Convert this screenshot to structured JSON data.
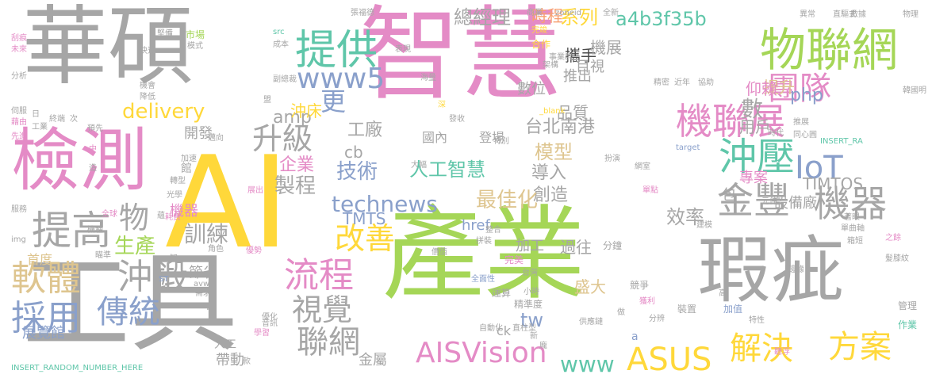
{
  "colors": {
    "pink": "#e48bc6",
    "green": "#a5d657",
    "gray": "#a6a6a6",
    "yellow": "#ffd83a",
    "tan": "#dec58f",
    "orange": "#f7a072",
    "teal": "#5fc6a9",
    "blue": "#8aa0cb",
    "dark": "#4b4b4b"
  },
  "words": [
    {
      "text": "智慧",
      "color": "pink"
    },
    {
      "text": "AI",
      "color": "yellow"
    },
    {
      "text": "產業",
      "color": "green"
    },
    {
      "text": "華碩",
      "color": "gray"
    },
    {
      "text": "工具",
      "color": "gray"
    },
    {
      "text": "瑕疵",
      "color": "gray"
    },
    {
      "text": "檢測",
      "color": "pink"
    },
    {
      "text": "物聯網",
      "color": "green"
    },
    {
      "text": "提供",
      "color": "teal"
    },
    {
      "text": "團隊",
      "color": "pink"
    },
    {
      "text": "機聯展",
      "color": "pink"
    },
    {
      "text": "金豐",
      "color": "gray"
    },
    {
      "text": "機器",
      "color": "gray"
    },
    {
      "text": "沖壓",
      "color": "teal"
    },
    {
      "text": "IoT",
      "color": "blue"
    },
    {
      "text": "提高",
      "color": "gray"
    },
    {
      "text": "軟體",
      "color": "tan"
    },
    {
      "text": "沖鍛",
      "color": "gray"
    },
    {
      "text": "採用",
      "color": "blue"
    },
    {
      "text": "傳統",
      "color": "blue"
    },
    {
      "text": "流程",
      "color": "pink"
    },
    {
      "text": "視覺",
      "color": "gray"
    },
    {
      "text": "聯網",
      "color": "gray"
    },
    {
      "text": "AISVision",
      "color": "pink"
    },
    {
      "text": "ASUS",
      "color": "yellow"
    },
    {
      "text": "解決",
      "color": "yellow"
    },
    {
      "text": "方案",
      "color": "yellow"
    },
    {
      "text": "www5",
      "color": "blue"
    },
    {
      "text": "更",
      "color": "blue"
    },
    {
      "text": "升級",
      "color": "gray"
    },
    {
      "text": "改善",
      "color": "yellow"
    },
    {
      "text": "technews",
      "color": "blue"
    },
    {
      "text": "www",
      "color": "teal"
    },
    {
      "text": "tw",
      "color": "blue"
    },
    {
      "text": "物",
      "color": "gray"
    },
    {
      "text": "生產",
      "color": "green"
    },
    {
      "text": "訓練",
      "color": "gray"
    },
    {
      "text": "製程",
      "color": "gray"
    },
    {
      "text": "企業",
      "color": "pink"
    },
    {
      "text": "技術",
      "color": "blue"
    },
    {
      "text": "人工智慧",
      "color": "teal"
    },
    {
      "text": "導入",
      "color": "gray"
    },
    {
      "text": "創造",
      "color": "gray"
    },
    {
      "text": "最佳化",
      "color": "tan"
    },
    {
      "text": "模型",
      "color": "tan"
    },
    {
      "text": "效率",
      "color": "gray"
    },
    {
      "text": "工廠",
      "color": "gray"
    },
    {
      "text": "總經理",
      "color": "gray"
    },
    {
      "text": "delivery",
      "color": "yellow"
    },
    {
      "text": "amp",
      "color": "gray"
    },
    {
      "text": "沖床",
      "color": "yellow"
    },
    {
      "text": "品質",
      "color": "gray"
    },
    {
      "text": "數位",
      "color": "gray"
    },
    {
      "text": "系列",
      "color": "yellow"
    },
    {
      "text": "時程",
      "color": "orange"
    },
    {
      "text": "a4b3f35b",
      "color": "teal"
    },
    {
      "text": "php",
      "color": "blue"
    },
    {
      "text": "提升",
      "color": "tan"
    },
    {
      "text": "數",
      "color": "gray"
    },
    {
      "text": "用戶",
      "color": "gray"
    },
    {
      "text": "仰賴",
      "color": "pink"
    },
    {
      "text": "cb",
      "color": "gray"
    },
    {
      "text": "台北南港",
      "color": "gray"
    },
    {
      "text": "攜手",
      "color": "dark"
    },
    {
      "text": "推出",
      "color": "gray"
    },
    {
      "text": "目視",
      "color": "gray"
    },
    {
      "text": "機展",
      "color": "gray"
    },
    {
      "text": "TIMTOS",
      "color": "gray"
    },
    {
      "text": "TMTS",
      "color": "blue"
    },
    {
      "text": "href",
      "color": "blue"
    },
    {
      "text": "加工",
      "color": "gray"
    },
    {
      "text": "過往",
      "color": "gray"
    },
    {
      "text": "盛大",
      "color": "tan"
    },
    {
      "text": "機器",
      "color": "pink"
    },
    {
      "text": "開發",
      "color": "gray"
    },
    {
      "text": "專案",
      "color": "pink"
    },
    {
      "text": "設備廠",
      "color": "gray"
    },
    {
      "text": "節省",
      "color": "gray"
    },
    {
      "text": "展覽館",
      "color": "blue"
    },
    {
      "text": "帶動",
      "color": "gray"
    },
    {
      "text": "人工",
      "color": "gray"
    },
    {
      "text": "金屬",
      "color": "gray"
    },
    {
      "text": "ck",
      "color": "gray"
    },
    {
      "text": "首度",
      "color": "tan"
    },
    {
      "text": "INSERT_RANDOM_NUMBER_HERE",
      "color": "teal"
    },
    {
      "text": "國內",
      "color": "gray"
    },
    {
      "text": "登場",
      "color": "gray"
    },
    {
      "text": "包",
      "color": "gray"
    },
    {
      "text": "n",
      "color": "gray"
    },
    {
      "text": "avw",
      "color": "gray"
    },
    {
      "text": "ST",
      "color": "blue"
    },
    {
      "text": "a",
      "color": "blue"
    },
    {
      "text": "自動化",
      "color": "gray"
    },
    {
      "text": "直柱型",
      "color": "gray"
    },
    {
      "text": "精準度",
      "color": "gray"
    },
    {
      "text": "台灣",
      "color": "gray"
    },
    {
      "text": "全面性",
      "color": "blue"
    },
    {
      "text": "運算",
      "color": "gray"
    },
    {
      "text": "完美",
      "color": "pink"
    },
    {
      "text": "整合",
      "color": "gray"
    },
    {
      "text": "拼裝",
      "color": "gray"
    },
    {
      "text": "分鐘",
      "color": "gray"
    },
    {
      "text": "競爭",
      "color": "gray"
    },
    {
      "text": "分辨",
      "color": "gray"
    },
    {
      "text": "裝置",
      "color": "gray"
    },
    {
      "text": "加值",
      "color": "blue"
    },
    {
      "text": "作業",
      "color": "teal"
    },
    {
      "text": "管理",
      "color": "gray"
    },
    {
      "text": "高",
      "color": "gray"
    },
    {
      "text": "髮膝紋",
      "color": "gray"
    },
    {
      "text": "箱短",
      "color": "gray"
    },
    {
      "text": "之餘",
      "color": "pink"
    },
    {
      "text": "單曲軸",
      "color": "gray"
    },
    {
      "text": "建模",
      "color": "gray"
    },
    {
      "text": "著眼",
      "color": "gray"
    },
    {
      "text": "元件",
      "color": "gray"
    },
    {
      "text": "單點",
      "color": "pink"
    },
    {
      "text": "推展",
      "color": "gray"
    },
    {
      "text": "同心圓",
      "color": "gray"
    },
    {
      "text": "時代",
      "color": "gray"
    },
    {
      "text": "INSERT_RA",
      "color": "teal"
    },
    {
      "text": "扮演",
      "color": "gray"
    },
    {
      "text": "target",
      "color": "blue"
    },
    {
      "text": "網室",
      "color": "gray"
    },
    {
      "text": "協助",
      "color": "gray"
    },
    {
      "text": "近年",
      "color": "gray"
    },
    {
      "text": "精密",
      "color": "gray"
    },
    {
      "text": "數據",
      "color": "gray"
    },
    {
      "text": "直驅式",
      "color": "gray"
    },
    {
      "text": "異常",
      "color": "gray"
    },
    {
      "text": "物理",
      "color": "gray"
    },
    {
      "text": "韓國明",
      "color": "gray"
    },
    {
      "text": "全新",
      "color": "gray"
    },
    {
      "text": "zoneid",
      "color": "gray"
    },
    {
      "text": "商業",
      "color": "gray"
    },
    {
      "text": "張福德",
      "color": "gray"
    },
    {
      "text": "src",
      "color": "teal"
    },
    {
      "text": "成本",
      "color": "gray"
    },
    {
      "text": "副總裁",
      "color": "gray"
    },
    {
      "text": "市場",
      "color": "green"
    },
    {
      "text": "模式",
      "color": "gray"
    },
    {
      "text": "堅備",
      "color": "gray"
    },
    {
      "text": "表現",
      "color": "gray"
    },
    {
      "text": "完竣",
      "color": "yellow"
    },
    {
      "text": "事業群",
      "color": "gray"
    },
    {
      "text": "合作",
      "color": "yellow"
    },
    {
      "text": "架構",
      "color": "gray"
    },
    {
      "text": "海量",
      "color": "gray"
    },
    {
      "text": "深",
      "color": "yellow"
    },
    {
      "text": "_blank",
      "color": "yellow"
    },
    {
      "text": "發收",
      "color": "gray"
    },
    {
      "text": "特別",
      "color": "gray"
    },
    {
      "text": "大幅",
      "color": "gray"
    },
    {
      "text": "展出",
      "color": "pink"
    },
    {
      "text": "價值",
      "color": "gray"
    },
    {
      "text": "優勢",
      "color": "pink"
    },
    {
      "text": "需求",
      "color": "gray"
    },
    {
      "text": "學習",
      "color": "pink"
    },
    {
      "text": "角色",
      "color": "gray"
    },
    {
      "text": "轉型",
      "color": "gray"
    },
    {
      "text": "光學",
      "color": "gray"
    },
    {
      "text": "全球",
      "color": "pink"
    },
    {
      "text": "機種",
      "color": "gray"
    },
    {
      "text": "服務",
      "color": "gray"
    },
    {
      "text": "img",
      "color": "gray"
    },
    {
      "text": "瞄準",
      "color": "gray"
    },
    {
      "text": "知",
      "color": "gray"
    },
    {
      "text": "蘊",
      "color": "gray"
    },
    {
      "text": "優化",
      "color": "gray"
    },
    {
      "text": "獲利",
      "color": "pink"
    },
    {
      "text": "供應鏈",
      "color": "gray"
    },
    {
      "text": "做",
      "color": "gray"
    },
    {
      "text": "新",
      "color": "gray"
    },
    {
      "text": "龐",
      "color": "gray"
    },
    {
      "text": "小時",
      "color": "gray"
    },
    {
      "text": "邊緣",
      "color": "gray"
    },
    {
      "text": "特性",
      "color": "gray"
    },
    {
      "text": "聽浮",
      "color": "pink"
    },
    {
      "text": "款",
      "color": "gray"
    },
    {
      "text": "館",
      "color": "gray"
    },
    {
      "text": "耗費",
      "color": "pink"
    },
    {
      "text": "機會",
      "color": "gray"
    },
    {
      "text": "降低",
      "color": "gray"
    },
    {
      "text": "分析",
      "color": "gray"
    },
    {
      "text": "伺服",
      "color": "gray"
    },
    {
      "text": "藉由",
      "color": "pink"
    },
    {
      "text": "先進",
      "color": "pink"
    },
    {
      "text": "工業",
      "color": "gray"
    },
    {
      "text": "終端",
      "color": "gray"
    },
    {
      "text": "次",
      "color": "gray"
    },
    {
      "text": "日",
      "color": "gray"
    },
    {
      "text": "預先",
      "color": "gray"
    },
    {
      "text": "快速",
      "color": "gray"
    },
    {
      "text": "未來",
      "color": "pink"
    },
    {
      "text": "刮痕",
      "color": "pink"
    },
    {
      "text": "加速",
      "color": "gray"
    },
    {
      "text": "中",
      "color": "pink"
    },
    {
      "text": "邁向",
      "color": "gray"
    },
    {
      "text": "音訊",
      "color": "gray"
    },
    {
      "text": "造",
      "color": "gray"
    },
    {
      "text": "盟",
      "color": "gray"
    }
  ]
}
